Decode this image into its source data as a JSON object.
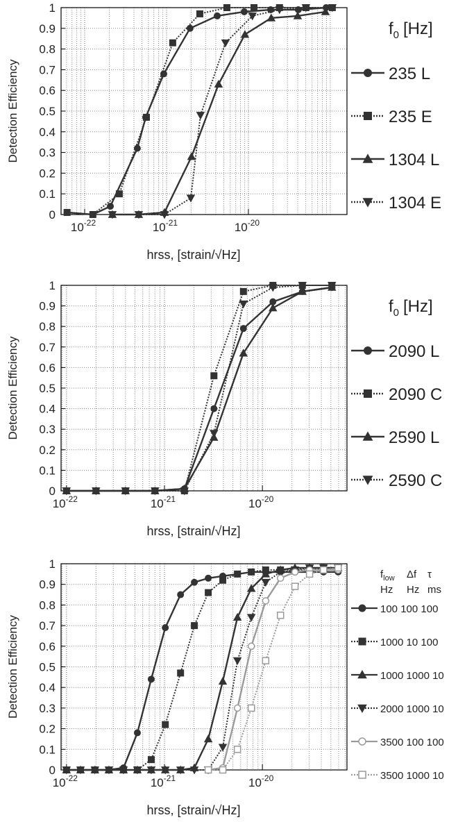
{
  "chart_data": [
    {
      "type": "line",
      "x_scale": "log",
      "grid": true,
      "ylabel": "Detection Efficiency",
      "xlabel": "hrss, [strain/√Hz]",
      "legend_title": {
        "text": "f",
        "subscript": "0",
        "suffix": "[Hz]"
      },
      "xlim": [
        5.15e-23,
        1.6e-19
      ],
      "ylim": [
        0,
        1
      ],
      "xticks": [
        {
          "value": 1e-22,
          "label": "10",
          "exponent": "-22"
        },
        {
          "value": 1e-21,
          "label": "10",
          "exponent": "-21"
        },
        {
          "value": 1e-20,
          "label": "10",
          "exponent": "-20"
        }
      ],
      "xminorticks": [
        6e-23,
        7e-23,
        8e-23,
        9e-23,
        2e-22,
        3e-22,
        4e-22,
        5e-22,
        6e-22,
        7e-22,
        8e-22,
        9e-22,
        2e-21,
        3e-21,
        4e-21,
        5e-21,
        6e-21,
        7e-21,
        8e-21,
        9e-21,
        2e-20,
        3e-20,
        4e-20,
        5e-20,
        6e-20,
        7e-20,
        8e-20,
        9e-20,
        1e-19
      ],
      "yticks": [
        0,
        0.1,
        0.2,
        0.3,
        0.4,
        0.5,
        0.6,
        0.7,
        0.8,
        0.9,
        1
      ],
      "series": [
        {
          "name": "235 L",
          "color": "#333333",
          "marker": "circle",
          "line_style": "solid",
          "x": [
            6.1e-23,
            1.26e-22,
            2.06e-22,
            4.4e-22,
            5.57e-22,
            9.25e-22,
            1.94e-21,
            4.16e-21,
            8.9e-21,
            1.87e-20,
            4.07e-20,
            8.9e-20
          ],
          "values": [
            0.01,
            0,
            0.04,
            0.32,
            0.47,
            0.68,
            0.9,
            0.96,
            0.98,
            0.99,
            0.99,
            1
          ]
        },
        {
          "name": "235 E",
          "color": "#333333",
          "marker": "square",
          "line_style": "dotted",
          "x": [
            6.1e-23,
            1.26e-22,
            2.65e-22,
            5.68e-22,
            1.19e-21,
            2.55e-21,
            5.46e-21,
            1.17e-20,
            2.4e-20,
            5.05e-20,
            1.06e-19
          ],
          "values": [
            0.01,
            0,
            0.1,
            0.47,
            0.83,
            0.97,
            1,
            1,
            1,
            1,
            1
          ]
        },
        {
          "name": "1304 L",
          "color": "#333333",
          "marker": "triangle-up",
          "line_style": "solid",
          "x": [
            2.18e-22,
            4.58e-22,
            9.44e-22,
            2.02e-21,
            4.32e-21,
            9.07e-21,
            1.9e-20,
            4e-20,
            8.73e-20
          ],
          "values": [
            0,
            0,
            0.01,
            0.28,
            0.63,
            0.87,
            0.95,
            0.96,
            0.98
          ]
        },
        {
          "name": "1304 E",
          "color": "#333333",
          "marker": "triangle-down",
          "line_style": "dotted",
          "x": [
            2.18e-22,
            4.58e-22,
            9.44e-22,
            1.98e-21,
            2.6e-21,
            5.25e-21,
            1.12e-20,
            2.4e-20,
            5.05e-20,
            1.06e-19
          ],
          "values": [
            0,
            0,
            0,
            0.08,
            0.48,
            0.83,
            0.96,
            0.99,
            1,
            1
          ]
        }
      ]
    },
    {
      "type": "line",
      "x_scale": "log",
      "grid": true,
      "ylabel": "Detection Efficiency",
      "xlabel": "hrss, [strain/√Hz]",
      "legend_title": {
        "text": "f",
        "subscript": "0",
        "suffix": "[Hz]"
      },
      "xlim": [
        8.8e-23,
        7.3e-20
      ],
      "ylim": [
        0,
        1
      ],
      "xticks": [
        {
          "value": 1e-22,
          "label": "10",
          "exponent": "-22"
        },
        {
          "value": 1e-21,
          "label": "10",
          "exponent": "-21"
        },
        {
          "value": 1e-20,
          "label": "10",
          "exponent": "-20"
        }
      ],
      "xminorticks": [
        9e-23,
        2e-22,
        3e-22,
        4e-22,
        5e-22,
        6e-22,
        7e-22,
        8e-22,
        9e-22,
        2e-21,
        3e-21,
        4e-21,
        5e-21,
        6e-21,
        7e-21,
        8e-21,
        9e-21,
        2e-20,
        3e-20,
        4e-20,
        5e-20,
        6e-20,
        7e-20
      ],
      "yticks": [
        0,
        0.1,
        0.2,
        0.3,
        0.4,
        0.5,
        0.6,
        0.7,
        0.8,
        0.9,
        1
      ],
      "x": [
        1e-22,
        2e-22,
        4e-22,
        8e-22,
        1.6e-21,
        3.2e-21,
        6.4e-21,
        1.28e-20,
        2.56e-20,
        5.12e-20
      ],
      "series": [
        {
          "name": "2090 L",
          "color": "#333333",
          "marker": "circle",
          "line_style": "solid",
          "values": [
            0,
            0,
            0,
            0,
            0.01,
            0.4,
            0.79,
            0.92,
            0.97,
            0.99
          ]
        },
        {
          "name": "2090 C",
          "color": "#333333",
          "marker": "square",
          "line_style": "dotted",
          "values": [
            0,
            0,
            0,
            0,
            0,
            0.56,
            0.97,
            1,
            1,
            1
          ]
        },
        {
          "name": "2590 L",
          "color": "#333333",
          "marker": "triangle-up",
          "line_style": "solid",
          "values": [
            0,
            0,
            0,
            0,
            0.01,
            0.26,
            0.67,
            0.89,
            0.97,
            0.99
          ]
        },
        {
          "name": "2590 C",
          "color": "#333333",
          "marker": "triangle-down",
          "line_style": "dotted",
          "values": [
            0,
            0,
            0,
            0,
            0,
            0.28,
            0.91,
            0.99,
            1,
            1
          ]
        }
      ]
    },
    {
      "type": "line",
      "x_scale": "log",
      "grid": true,
      "ylabel": "Detection Efficiency",
      "xlabel": "hrss, [strain/√Hz]",
      "legend_columns": [
        {
          "name": "f",
          "subscript": "low",
          "unit": "Hz"
        },
        {
          "name": "Δf",
          "unit": "Hz"
        },
        {
          "name": "τ",
          "unit": "ms"
        }
      ],
      "xlim": [
        8.8e-23,
        7.3e-20
      ],
      "ylim": [
        0,
        1
      ],
      "xticks": [
        {
          "value": 1e-22,
          "label": "10",
          "exponent": "-22"
        },
        {
          "value": 1e-21,
          "label": "10",
          "exponent": "-21"
        },
        {
          "value": 1e-20,
          "label": "10",
          "exponent": "-20"
        }
      ],
      "xminorticks": [
        9e-23,
        2e-22,
        3e-22,
        4e-22,
        5e-22,
        6e-22,
        7e-22,
        8e-22,
        9e-22,
        2e-21,
        3e-21,
        4e-21,
        5e-21,
        6e-21,
        7e-21,
        8e-21,
        9e-21,
        2e-20,
        3e-20,
        4e-20,
        5e-20,
        6e-20,
        7e-20
      ],
      "yticks": [
        0,
        0.1,
        0.2,
        0.3,
        0.4,
        0.5,
        0.6,
        0.7,
        0.8,
        0.9,
        1
      ],
      "x": [
        1e-22,
        1.39e-22,
        1.95e-22,
        2.71e-22,
        3.82e-22,
        5.29e-22,
        7.33e-22,
        1.02e-21,
        1.46e-21,
        2.02e-21,
        2.8e-21,
        3.94e-21,
        5.56e-21,
        7.71e-21,
        1.08e-20,
        1.53e-20,
        2.15e-20,
        3.03e-20,
        4.21e-20,
        5.93e-20
      ],
      "series": [
        {
          "name": "100 100 100",
          "color": "#333333",
          "marker": "circle",
          "line_style": "solid",
          "values": [
            0,
            0,
            0,
            0,
            0.01,
            0.18,
            0.44,
            0.69,
            0.85,
            0.91,
            0.93,
            0.94,
            0.95,
            0.96,
            0.96,
            0.96,
            0.96,
            0.96,
            0.96,
            0.96
          ]
        },
        {
          "name": "1000 10 100",
          "color": "#333333",
          "marker": "square",
          "line_style": "dotted",
          "values": [
            0,
            0,
            0,
            0,
            0,
            0,
            0.05,
            0.22,
            0.47,
            0.7,
            0.86,
            0.92,
            0.95,
            0.96,
            0.97,
            0.97,
            0.97,
            0.97,
            0.98,
            0.98
          ]
        },
        {
          "name": "1000 1000 10",
          "color": "#333333",
          "marker": "triangle-up",
          "line_style": "solid",
          "values": [
            0,
            0,
            0,
            0,
            0,
            0,
            0,
            0,
            0,
            0.01,
            0.15,
            0.43,
            0.74,
            0.88,
            0.95,
            0.97,
            0.98,
            0.98,
            0.98,
            0.98
          ]
        },
        {
          "name": "2000 1000 10",
          "color": "#333333",
          "marker": "triangle-down",
          "line_style": "dotted",
          "values": [
            0,
            0,
            0,
            0,
            0,
            0,
            0,
            0,
            0,
            0,
            0,
            0.11,
            0.53,
            0.74,
            0.91,
            0.96,
            0.97,
            0.98,
            0.98,
            0.98
          ]
        },
        {
          "name": "3500 100 100",
          "color": "#9a9a9a",
          "marker": "open-circle",
          "line_style": "solid",
          "values": [
            null,
            null,
            null,
            null,
            null,
            null,
            null,
            null,
            null,
            null,
            0,
            0.01,
            0.3,
            0.6,
            0.82,
            0.93,
            0.96,
            0.97,
            0.97,
            0.97
          ]
        },
        {
          "name": "3500 1000 10",
          "color": "#9a9a9a",
          "marker": "open-square",
          "line_style": "dotted",
          "values": [
            null,
            null,
            null,
            null,
            null,
            null,
            null,
            null,
            null,
            null,
            0,
            0,
            0.1,
            0.3,
            0.53,
            0.75,
            0.89,
            0.95,
            0.97,
            0.98
          ]
        }
      ]
    }
  ]
}
